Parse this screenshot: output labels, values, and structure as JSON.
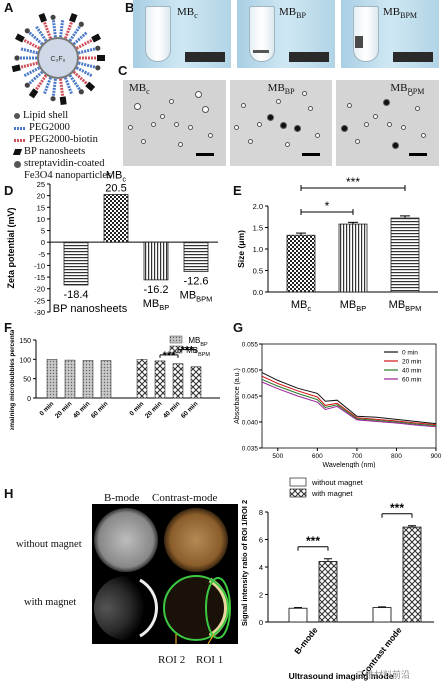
{
  "panels": {
    "A": {
      "label": "A",
      "center_label": "C₃F₈",
      "legend": [
        "Lipid shell",
        "PEG2000",
        "PEG2000-biotin",
        "BP nanosheets",
        "streptavidin-coated",
        "Fe3O4 nanoparticles"
      ],
      "colors": {
        "peg": "#4a78c8",
        "biotin": "#d0505a",
        "lipid": "#777777"
      }
    },
    "B": {
      "label": "B",
      "tubes": [
        {
          "name": "MBc"
        },
        {
          "name": "MBBP"
        },
        {
          "name": "MBBPM"
        }
      ]
    },
    "C": {
      "label": "C",
      "images": [
        {
          "name": "MBc"
        },
        {
          "name": "MBBP"
        },
        {
          "name": "MBBPM"
        }
      ]
    },
    "H": {
      "label": "H",
      "col_labels": [
        "B-mode",
        "Contrast-mode"
      ],
      "row_labels": [
        "without magnet",
        "with magnet"
      ],
      "roi_labels": [
        "ROI 2",
        "ROI 1"
      ]
    }
  },
  "watermark": "二维材料前沿",
  "chart_data": [
    {
      "id": "D",
      "label": "D",
      "type": "bar",
      "categories": [
        "BP nanosheets",
        "MBc",
        "MBBP",
        "MBBPM"
      ],
      "values": [
        -18.4,
        20.5,
        -16.2,
        -12.6
      ],
      "value_labels": [
        "-18.4",
        "20.5",
        "-16.2",
        "-12.6"
      ],
      "ylabel": "Zeta potential (mV)",
      "ylim": [
        -30,
        25
      ],
      "yticks": [
        "-30",
        "-25",
        "-20",
        "-15",
        "-10",
        "-5",
        "0",
        "5",
        "10",
        "15",
        "20",
        "25"
      ]
    },
    {
      "id": "E",
      "label": "E",
      "type": "bar",
      "categories": [
        "MBc",
        "MBBP",
        "MBBPM"
      ],
      "values": [
        1.32,
        1.58,
        1.72
      ],
      "errors": [
        0.05,
        0.04,
        0.05
      ],
      "ylabel": "Size (μm)",
      "ylim": [
        0,
        2.0
      ],
      "yticks": [
        "0.0",
        "0.5",
        "1.0",
        "1.5",
        "2.0"
      ],
      "significance": [
        {
          "from": 0,
          "to": 1,
          "label": "*"
        },
        {
          "from": 0,
          "to": 2,
          "label": "***"
        }
      ]
    },
    {
      "id": "F",
      "label": "F",
      "type": "bar",
      "categories": [
        "0 min",
        "20 min",
        "40 min",
        "60 min"
      ],
      "series": [
        {
          "name": "MBBP",
          "values": [
            100,
            98,
            97,
            97
          ]
        },
        {
          "name": "MBBPM",
          "values": [
            100,
            96,
            89,
            81
          ]
        }
      ],
      "ylabel": "Remaining microbubbles percentage (%)",
      "ylim": [
        0,
        150
      ],
      "yticks": [
        "0",
        "50",
        "100",
        "150"
      ],
      "significance": [
        {
          "from": 1,
          "to": 2,
          "label": "***"
        },
        {
          "from": 2,
          "to": 3,
          "label": "***"
        }
      ]
    },
    {
      "id": "G",
      "label": "G",
      "type": "line",
      "xlabel": "Wavelength (nm)",
      "ylabel": "Absorbance (a.u.)",
      "xlim": [
        460,
        900
      ],
      "ylim": [
        0.035,
        0.055
      ],
      "xticks": [
        "500",
        "600",
        "700",
        "800",
        "900"
      ],
      "yticks": [
        "0.035",
        "0.040",
        "0.045",
        "0.050",
        "0.055"
      ],
      "x": [
        460,
        500,
        550,
        600,
        620,
        650,
        700,
        750,
        800,
        850,
        900
      ],
      "series": [
        {
          "name": "0 min",
          "color": "#111111",
          "values": [
            0.0495,
            0.048,
            0.0465,
            0.0455,
            0.044,
            0.0442,
            0.0411,
            0.0409,
            0.0405,
            0.0401,
            0.0397
          ]
        },
        {
          "name": "20 min",
          "color": "#d01515",
          "values": [
            0.0488,
            0.0474,
            0.046,
            0.0448,
            0.0432,
            0.0436,
            0.0408,
            0.0405,
            0.0402,
            0.0398,
            0.0395
          ]
        },
        {
          "name": "40 min",
          "color": "#2a7a2a",
          "values": [
            0.0482,
            0.0469,
            0.0455,
            0.0443,
            0.0428,
            0.0433,
            0.0406,
            0.0403,
            0.04,
            0.0396,
            0.0393
          ]
        },
        {
          "name": "60 min",
          "color": "#9a209a",
          "values": [
            0.0477,
            0.0464,
            0.045,
            0.0438,
            0.0424,
            0.043,
            0.0404,
            0.0401,
            0.0398,
            0.0394,
            0.0391
          ]
        }
      ]
    },
    {
      "id": "H-chart",
      "type": "bar",
      "categories": [
        "B-mode",
        "Contrast mode"
      ],
      "series": [
        {
          "name": "without magnet",
          "values": [
            1.0,
            1.05
          ]
        },
        {
          "name": "with magnet",
          "values": [
            4.4,
            6.9
          ]
        }
      ],
      "errors": [
        [
          0.05,
          0.05
        ],
        [
          0.2,
          0.1
        ]
      ],
      "ylabel": "Signal intensity ratio of ROI 1/ROI 2",
      "xlabel": "Ultrasound imaging mode",
      "ylim": [
        0,
        8
      ],
      "yticks": [
        "0",
        "2",
        "4",
        "6",
        "8"
      ],
      "significance": [
        {
          "group": 0,
          "label": "***"
        },
        {
          "group": 1,
          "label": "***"
        }
      ]
    }
  ]
}
